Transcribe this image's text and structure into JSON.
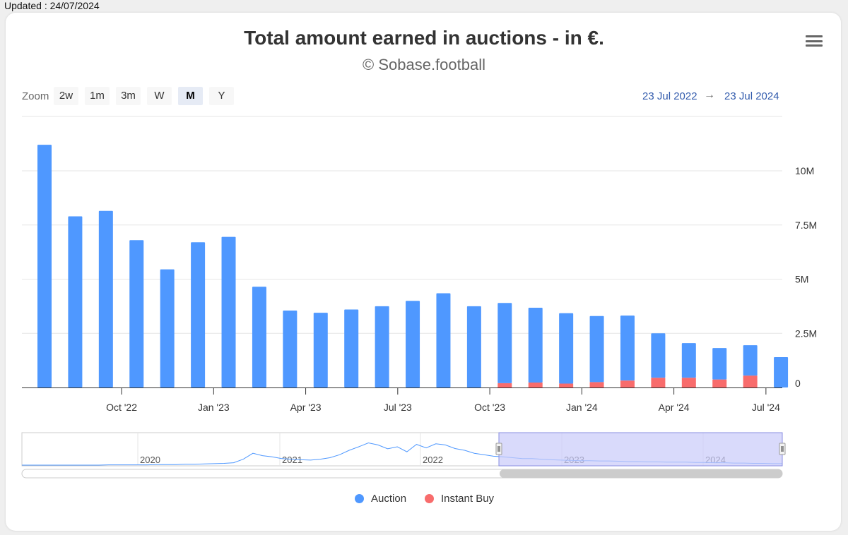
{
  "header": {
    "updated": "Updated : 24/07/2024"
  },
  "chart_data": {
    "type": "bar",
    "stacked": true,
    "title": "Total amount earned in auctions - in €.",
    "subtitle": "© Sobase.football",
    "categories": [
      "Jul '22",
      "Aug '22",
      "Sep '22",
      "Oct '22",
      "Nov '22",
      "Dec '22",
      "Jan '23",
      "Feb '23",
      "Mar '23",
      "Apr '23",
      "May '23",
      "Jun '23",
      "Jul '23",
      "Aug '23",
      "Sep '23",
      "Oct '23",
      "Nov '23",
      "Dec '23",
      "Jan '24",
      "Feb '24",
      "Mar '24",
      "Apr '24",
      "May '24",
      "Jun '24",
      "Jul '24"
    ],
    "series": [
      {
        "name": "Auction",
        "color": "#4f98ff",
        "values": [
          11200000,
          7900000,
          8150000,
          6800000,
          5450000,
          6700000,
          6950000,
          4650000,
          3550000,
          3450000,
          3600000,
          3750000,
          4000000,
          4350000,
          3750000,
          3700000,
          3450000,
          3250000,
          3050000,
          3000000,
          2050000,
          1600000,
          1450000,
          1400000,
          1400000
        ]
      },
      {
        "name": "Instant Buy",
        "color": "#f86c6c",
        "values": [
          0,
          0,
          0,
          0,
          0,
          0,
          0,
          0,
          0,
          0,
          0,
          0,
          0,
          0,
          0,
          200000,
          230000,
          180000,
          250000,
          320000,
          450000,
          450000,
          370000,
          550000,
          0
        ]
      }
    ],
    "ylim": [
      0,
      11500000
    ],
    "y_ticks": [
      {
        "value": 0,
        "label": "0"
      },
      {
        "value": 2500000,
        "label": "2.5M"
      },
      {
        "value": 5000000,
        "label": "5M"
      },
      {
        "value": 7500000,
        "label": "7.5M"
      },
      {
        "value": 10000000,
        "label": "10M"
      }
    ],
    "x_tick_labels": [
      {
        "index": 3,
        "label": "Oct '22"
      },
      {
        "index": 6,
        "label": "Jan '23"
      },
      {
        "index": 9,
        "label": "Apr '23"
      },
      {
        "index": 12,
        "label": "Jul '23"
      },
      {
        "index": 15,
        "label": "Oct '23"
      },
      {
        "index": 18,
        "label": "Jan '24"
      },
      {
        "index": 21,
        "label": "Apr '24"
      },
      {
        "index": 24,
        "label": "Jul '24"
      }
    ],
    "legend_position": "bottom-center",
    "grid": true
  },
  "range_selector": {
    "zoom_label": "Zoom",
    "buttons": [
      "2w",
      "1m",
      "3m",
      "W",
      "M",
      "Y"
    ],
    "active": "M",
    "from": "23 Jul 2022",
    "arrow": "→",
    "to": "23 Jul 2024"
  },
  "navigator": {
    "year_labels": [
      "2020",
      "2021",
      "2022",
      "2023",
      "2024"
    ],
    "series": [
      0.0,
      0.0,
      0.0,
      0.0,
      0.0,
      0.0,
      0.0,
      0.0,
      0.0,
      0.01,
      0.01,
      0.01,
      0.01,
      0.01,
      0.02,
      0.02,
      0.02,
      0.03,
      0.03,
      0.04,
      0.05,
      0.06,
      0.08,
      0.2,
      0.4,
      0.32,
      0.28,
      0.22,
      0.2,
      0.18,
      0.17,
      0.2,
      0.25,
      0.35,
      0.5,
      0.62,
      0.75,
      0.68,
      0.55,
      0.62,
      0.45,
      0.7,
      0.58,
      0.72,
      0.68,
      0.56,
      0.5,
      0.4,
      0.35,
      0.3,
      0.28,
      0.25,
      0.22,
      0.22,
      0.2,
      0.18,
      0.17,
      0.16,
      0.15,
      0.15,
      0.14,
      0.14,
      0.13,
      0.12,
      0.12,
      0.11,
      0.11,
      0.1,
      0.1,
      0.1,
      0.09,
      0.09,
      0.08,
      0.08,
      0.07,
      0.07,
      0.06,
      0.06,
      0.05,
      0.05
    ]
  },
  "colors": {
    "accent": "#335cad",
    "navigator_mask": "#c9cbfa"
  }
}
